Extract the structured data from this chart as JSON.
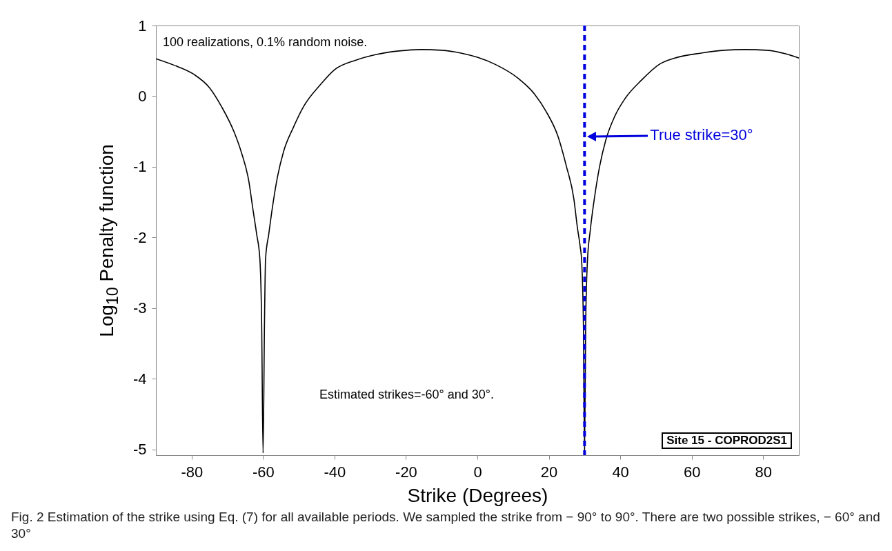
{
  "chart_data": {
    "type": "line",
    "xlabel": "Strike (Degrees)",
    "ylabel": "Log$_{10}$ Penalty function",
    "xlim": [
      -90,
      90
    ],
    "xticks": [
      -80,
      -60,
      -40,
      -20,
      0,
      20,
      40,
      60,
      80
    ],
    "ylim": [
      -5.08,
      1
    ],
    "yticks": [
      -5,
      -4,
      -3,
      -2,
      -1,
      0,
      1
    ],
    "grid": false,
    "series": [
      {
        "color": "#000000",
        "x": [
          -90,
          -85,
          -79.4,
          -75,
          -71.6,
          -68,
          -66.1,
          -64,
          -62.9,
          -61.8,
          -60.9,
          -60.4,
          -60,
          -59.6,
          -59.3,
          -58.4,
          -57.4,
          -56,
          -54.3,
          -51.5,
          -48.7,
          -44,
          -40.1,
          -34,
          -28.3,
          -22,
          -15.7,
          -10,
          -4.6,
          0,
          5,
          11.5,
          16,
          19.4,
          22.5,
          24.9,
          27,
          28,
          28.7,
          29.2,
          29.7,
          30,
          30.3,
          30.8,
          31.6,
          32.8,
          34.2,
          35.9,
          38.5,
          41.4,
          46,
          50.9,
          56,
          62.7,
          69,
          74.9,
          81,
          86.3,
          90
        ],
        "values": [
          0.53,
          0.44,
          0.31,
          0.12,
          -0.15,
          -0.52,
          -0.79,
          -1.2,
          -1.58,
          -1.95,
          -2.3,
          -3.2,
          -5.05,
          -3.2,
          -2.3,
          -1.95,
          -1.58,
          -1.15,
          -0.79,
          -0.44,
          -0.15,
          0.16,
          0.37,
          0.51,
          0.59,
          0.64,
          0.66,
          0.65,
          0.61,
          0.55,
          0.45,
          0.25,
          0.03,
          -0.23,
          -0.56,
          -0.99,
          -1.45,
          -1.86,
          -2.1,
          -2.34,
          -3.3,
          -5.05,
          -3.3,
          -2.34,
          -1.9,
          -1.43,
          -1.0,
          -0.63,
          -0.28,
          -0.03,
          0.23,
          0.45,
          0.55,
          0.61,
          0.65,
          0.66,
          0.65,
          0.6,
          0.54
        ]
      }
    ],
    "ref_lines": [
      {
        "axis": "x",
        "value": 30,
        "label": "True strike=30°",
        "color": "#0000dd",
        "line_style": "dashed"
      }
    ],
    "annotations": [
      "100 realizations, 0.1% random noise.",
      "Estimated strikes=-60° and 30°.",
      "Site 15 - COPROD2S1",
      "Fig. 2 Estimation of the strike using Eq. (7) for all available periods. We sampled the strike from − 90° to 90°. There are two possible strikes, − 60° and 30°"
    ]
  }
}
